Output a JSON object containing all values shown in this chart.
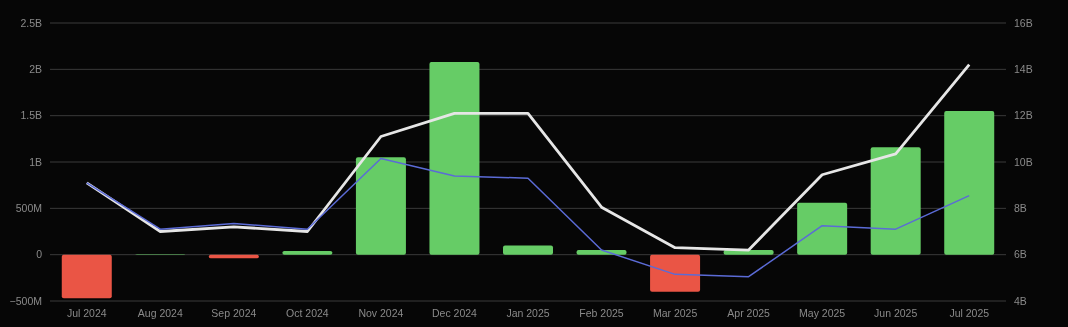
{
  "chart_data": {
    "type": "bar",
    "categories": [
      "Jul 2024",
      "Aug 2024",
      "Sep 2024",
      "Oct 2024",
      "Nov 2024",
      "Dec 2024",
      "Jan 2025",
      "Feb 2025",
      "Mar 2025",
      "Apr 2025",
      "May 2025",
      "Jun 2025",
      "Jul 2025"
    ],
    "series": [
      {
        "colors": [
          "#ea5545",
          "#5fbf5f",
          "#ea5545",
          "#66cc66",
          "#66cc66",
          "#66cc66",
          "#66cc66",
          "#66cc66",
          "#ea5545",
          "#66cc66",
          "#66cc66",
          "#66cc66",
          "#66cc66"
        ],
        "values": [
          -470000000,
          5000000,
          -40000000,
          40000000,
          1050000000,
          2080000000,
          100000000,
          50000000,
          -400000000,
          50000000,
          560000000,
          1160000000,
          1550000000
        ]
      },
      {
        "type": "line",
        "axis": "y2",
        "color": "#e6e6e6",
        "values": [
          9100000000,
          7000000000,
          7200000000,
          7000000000,
          11100000000,
          12100000000,
          12100000000,
          8050000000,
          6300000000,
          6200000000,
          9450000000,
          10350000000,
          14200000000
        ]
      },
      {
        "type": "line",
        "axis": "y2",
        "color": "#5b6bd6",
        "values": [
          9100000000,
          7100000000,
          7350000000,
          7100000000,
          10150000000,
          9400000000,
          9300000000,
          6200000000,
          5150000000,
          5050000000,
          7250000000,
          7100000000,
          8550000000
        ]
      }
    ],
    "ylim": [
      -500000000,
      2500000000
    ],
    "yticks": [
      {
        "value": -500000000,
        "label": "−500M"
      },
      0,
      {
        "value": 500000000,
        "label": "500M"
      },
      {
        "value": 1000000000,
        "label": "1B"
      },
      {
        "value": 1500000000,
        "label": "1.5B"
      },
      {
        "value": 2000000000,
        "label": "2B"
      },
      {
        "value": 2500000000,
        "label": "2.5B"
      }
    ],
    "y2lim": [
      4000000000,
      16000000000
    ],
    "y2ticks": [
      {
        "value": 4000000000,
        "label": "4B"
      },
      {
        "value": 6000000000,
        "label": "6B"
      },
      {
        "value": 8000000000,
        "label": "8B"
      },
      {
        "value": 10000000000,
        "label": "10B"
      },
      {
        "value": 12000000000,
        "label": "12B"
      },
      {
        "value": 14000000000,
        "label": "14B"
      },
      {
        "value": 16000000000,
        "label": "16B"
      }
    ],
    "grid": "y",
    "line_style": "solid",
    "marker": "none"
  }
}
